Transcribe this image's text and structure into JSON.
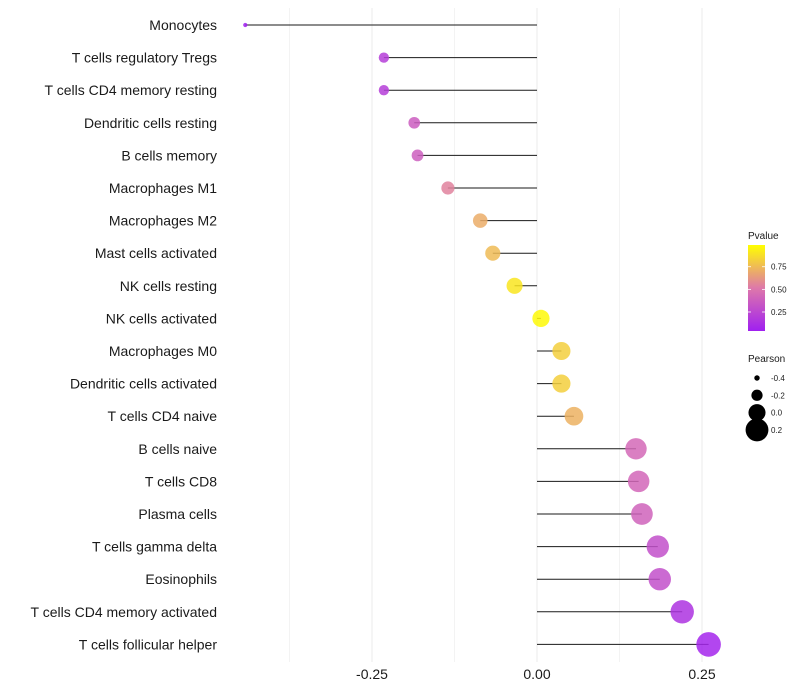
{
  "chart_data": {
    "type": "lollipop",
    "title": "",
    "xlabel": "",
    "ylabel": "",
    "xlim": [
      -0.46,
      0.275
    ],
    "x_ticks": [
      -0.25,
      0.0,
      0.25
    ],
    "x_tick_labels": [
      "-0.25",
      "0.00",
      "0.25"
    ],
    "grid": true,
    "categories": [
      "Monocytes",
      "T cells regulatory  Tregs ",
      "T cells CD4 memory resting",
      "Dendritic cells resting",
      "B cells memory",
      "Macrophages M1",
      "Macrophages M2",
      "Mast cells activated",
      "NK cells resting",
      "NK cells activated",
      "Macrophages M0",
      "Dendritic cells activated",
      "T cells CD4 naive",
      "B cells naive",
      "T cells CD8",
      "Plasma cells",
      "T cells gamma delta",
      "Eosinophils",
      "T cells CD4 memory activated",
      "T cells follicular helper"
    ],
    "pearson": [
      -0.442,
      -0.232,
      -0.232,
      -0.186,
      -0.181,
      -0.135,
      -0.086,
      -0.067,
      -0.034,
      0.006,
      0.037,
      0.037,
      0.056,
      0.15,
      0.154,
      0.159,
      0.183,
      0.186,
      0.22,
      0.26
    ],
    "pvalue": [
      0.01,
      0.2,
      0.2,
      0.37,
      0.38,
      0.55,
      0.7,
      0.75,
      0.9,
      0.97,
      0.82,
      0.82,
      0.72,
      0.43,
      0.42,
      0.4,
      0.3,
      0.3,
      0.14,
      0.07
    ],
    "color_legend": {
      "title": "Pvalue",
      "range": [
        0.04,
        0.99
      ],
      "ticks": [
        0.25,
        0.5,
        0.75
      ],
      "tick_labels": [
        "0.25",
        "0.50",
        "0.75"
      ],
      "low_color": "#A020F0",
      "high_color": "#FFFF00"
    },
    "size_legend": {
      "title": "Pearson",
      "values": [
        -0.4,
        -0.2,
        0.0,
        0.2
      ],
      "labels": [
        "-0.4",
        "-0.2",
        "0.0",
        "0.2"
      ]
    },
    "legend_position": "right"
  }
}
